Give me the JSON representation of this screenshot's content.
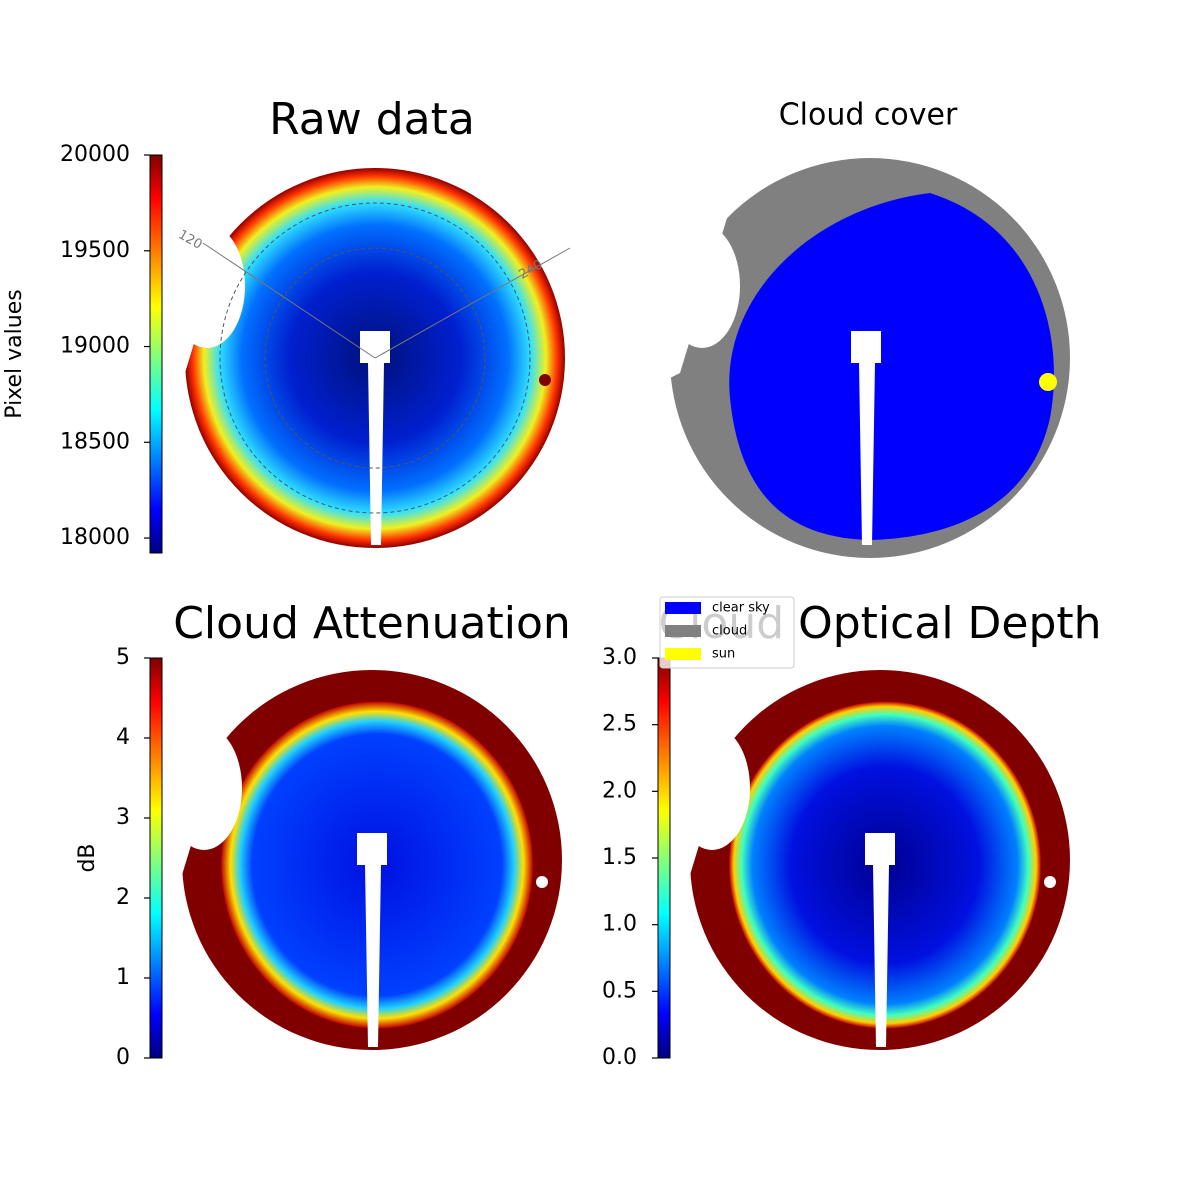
{
  "chart_data": [
    {
      "type": "image",
      "title": "Raw data",
      "colorbar_label": "Pixel values",
      "colormap": "jet",
      "clim": [
        17922,
        20000
      ],
      "ticks": [
        18000,
        18500,
        19000,
        19500,
        20000
      ],
      "annotations": [
        "120",
        "240"
      ]
    },
    {
      "type": "categorical",
      "title": "Cloud cover",
      "series": [
        {
          "name": "clear sky",
          "color": "#0000ff"
        },
        {
          "name": "cloud",
          "color": "#808080"
        },
        {
          "name": "sun",
          "color": "#ffff00"
        }
      ]
    },
    {
      "type": "image",
      "title": "Cloud Attenuation",
      "colorbar_label": "dB",
      "colormap": "jet",
      "clim": [
        0,
        5
      ],
      "ticks": [
        0,
        1,
        2,
        3,
        4,
        5
      ]
    },
    {
      "type": "image",
      "title": "Cloud Optical Depth",
      "colormap": "jet",
      "clim": [
        0,
        3
      ],
      "ticks": [
        {
          "value": 0,
          "label": "0.0"
        },
        {
          "value": 0.5,
          "label": "0.5"
        },
        {
          "value": 1,
          "label": "1.0"
        },
        {
          "value": 1.5,
          "label": "1.5"
        },
        {
          "value": 2,
          "label": "2.0"
        },
        {
          "value": 2.5,
          "label": "2.5"
        },
        {
          "value": 3,
          "label": "3.0"
        }
      ]
    }
  ]
}
